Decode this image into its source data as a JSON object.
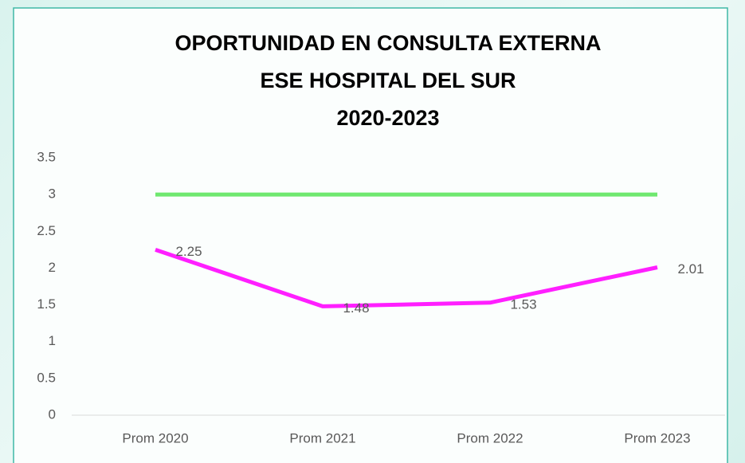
{
  "chart_data": {
    "type": "line",
    "title": [
      "OPORTUNIDAD EN  CONSULTA EXTERNA",
      "ESE HOSPITAL DEL SUR",
      "2020-2023"
    ],
    "categories": [
      "Prom 2020",
      "Prom 2021",
      "Prom 2022",
      "Prom 2023"
    ],
    "series": [
      {
        "color": "#6fe86f",
        "values": [
          3,
          3,
          3,
          3
        ]
      },
      {
        "color": "#ff1fff",
        "values": [
          2.25,
          1.48,
          1.53,
          2.01
        ],
        "data_labels": true
      }
    ],
    "ylim": [
      0,
      3.5
    ],
    "yticks": [
      0,
      0.5,
      1,
      1.5,
      2,
      2.5,
      3,
      3.5
    ],
    "grid": false
  }
}
